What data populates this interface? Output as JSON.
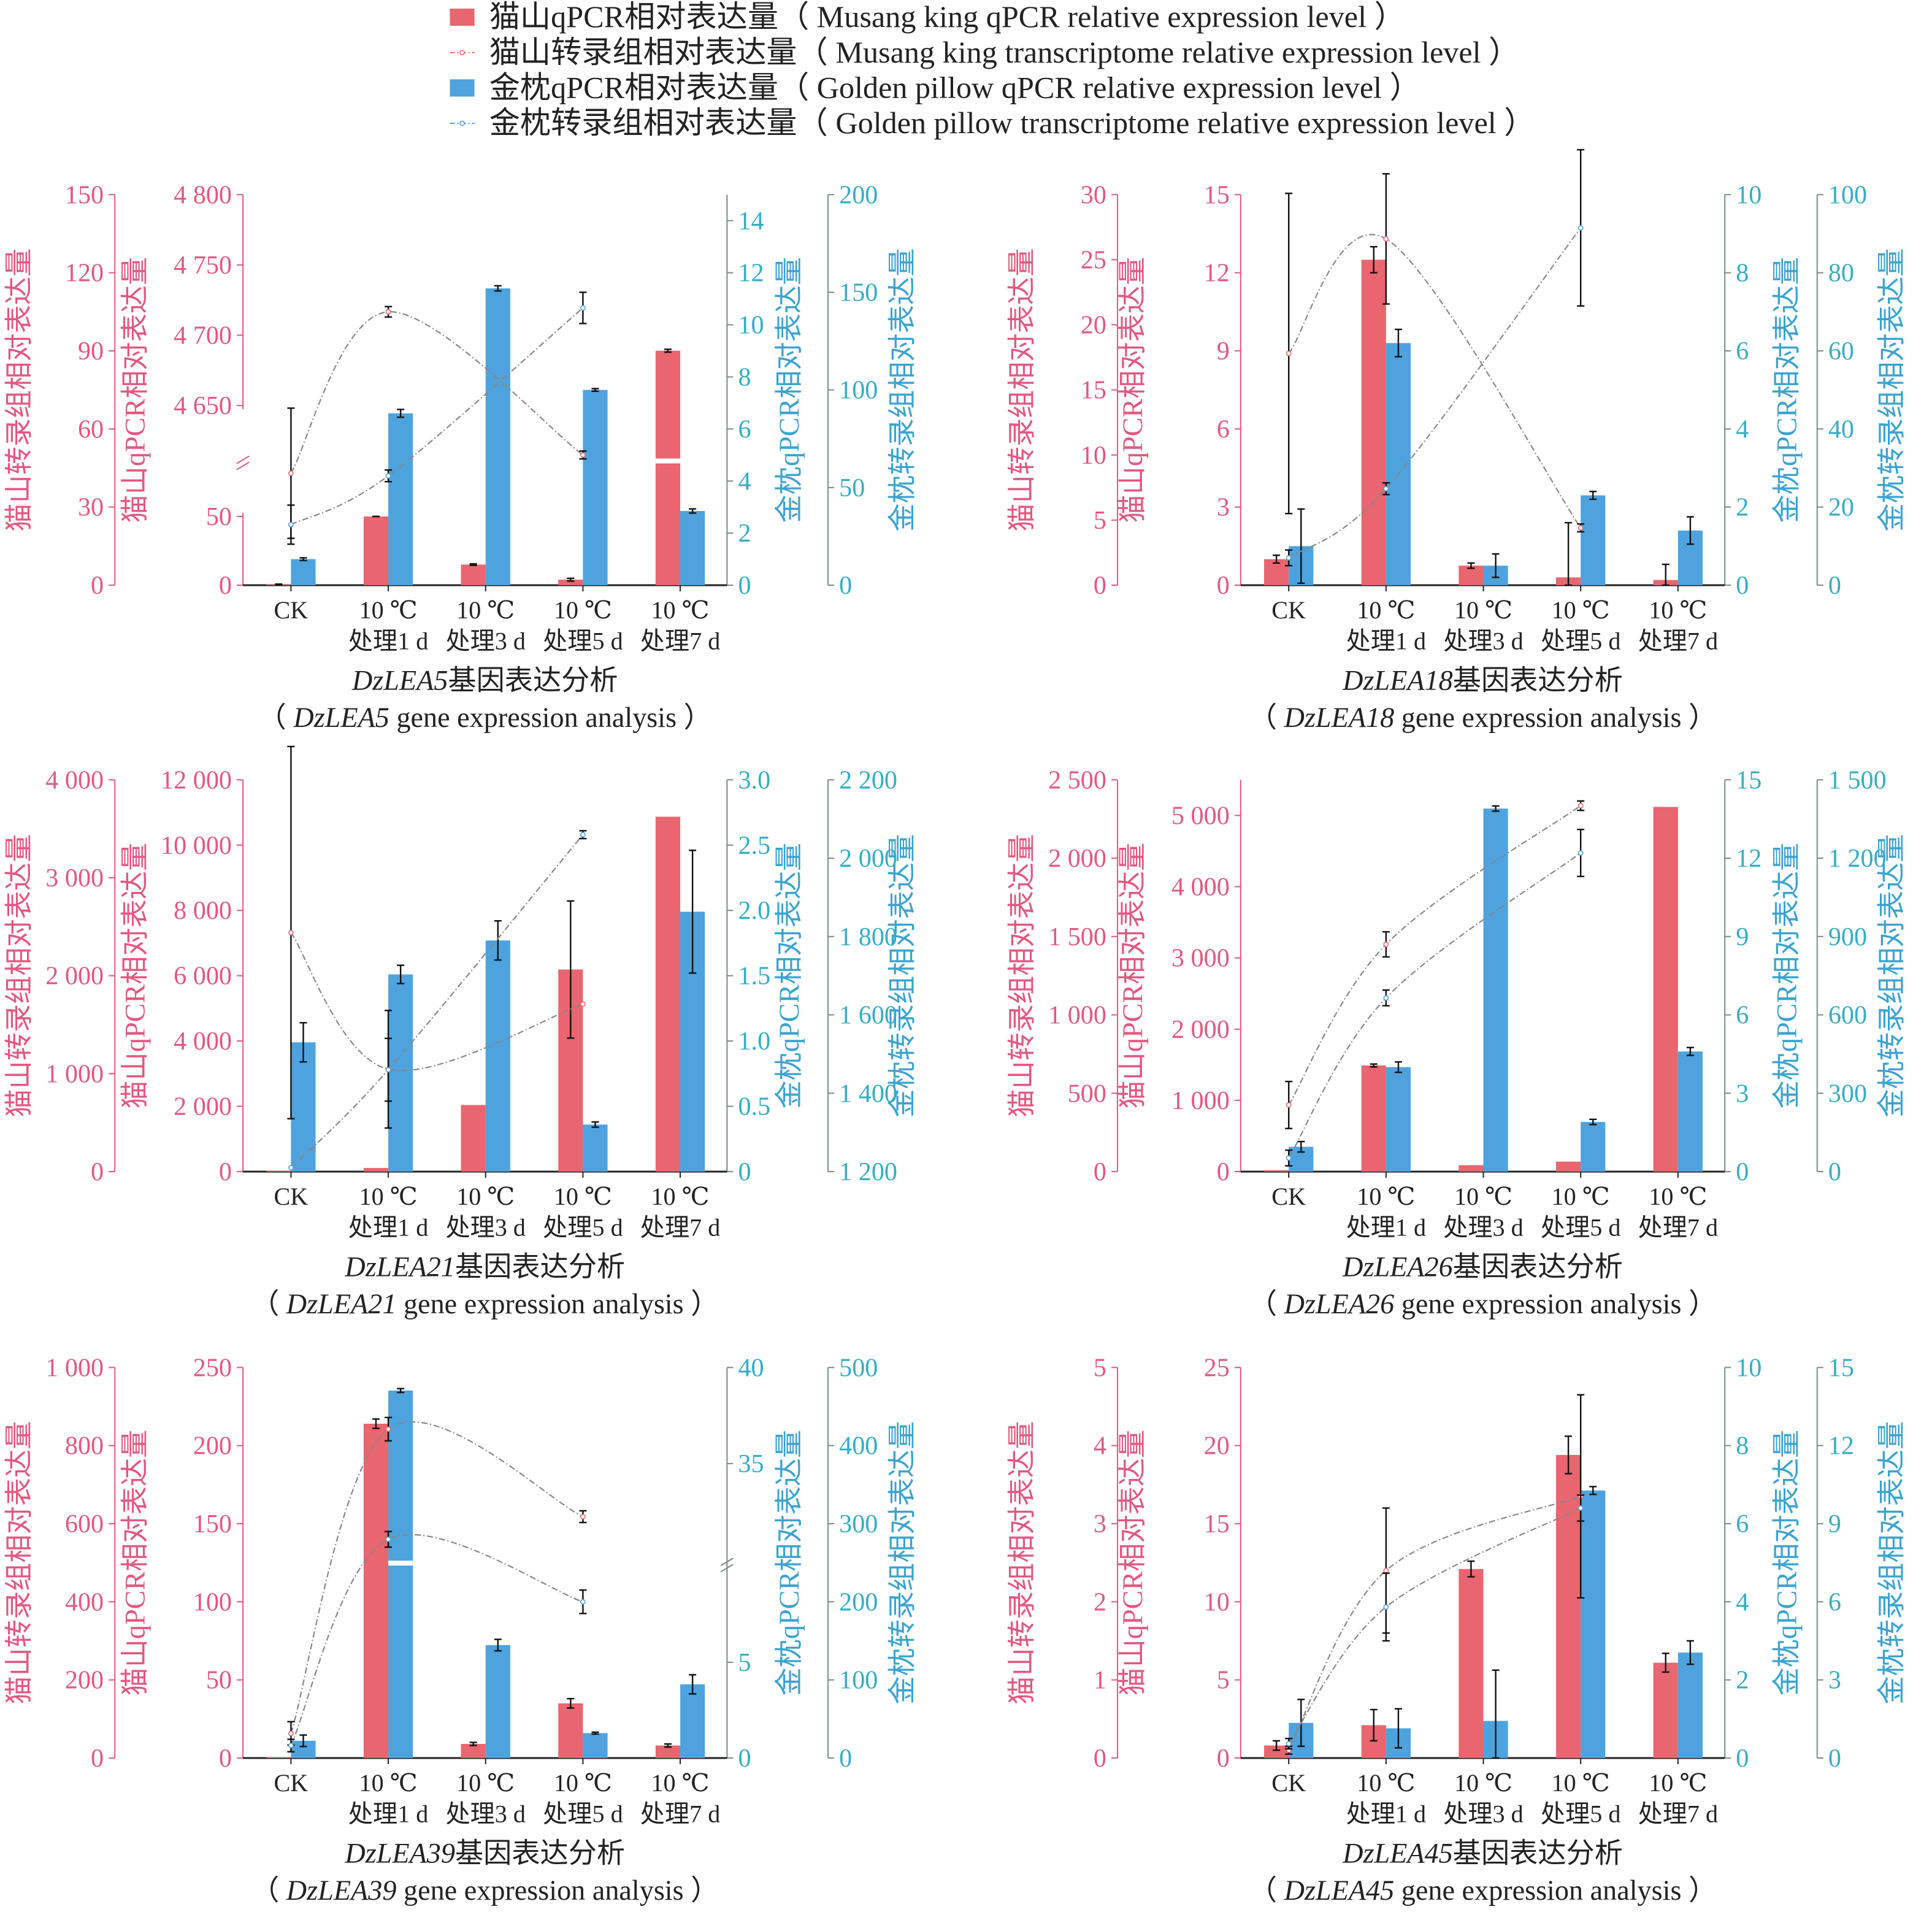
{
  "legend": [
    {
      "label": "猫山qPCR相对表达量（ Musang king qPCR relative expression level ）",
      "kind": "bar",
      "color": "#e9656f"
    },
    {
      "label": "猫山转录组相对表达量（ Musang king transcriptome relative expression level ）",
      "kind": "line",
      "color": "#e9656f"
    },
    {
      "label": "金枕qPCR相对表达量（ Golden pillow qPCR relative expression level ）",
      "kind": "bar",
      "color": "#4ea3de"
    },
    {
      "label": "金枕转录组相对表达量（ Golden pillow transcriptome relative expression level ）",
      "kind": "line",
      "color": "#4ea3de"
    }
  ],
  "colors": {
    "mk_bar": "#e9656f",
    "gp_bar": "#4ea3de",
    "left_axis": "#e2587f",
    "right_axis": "#33aec4",
    "line": "#888888"
  },
  "chart_data": [
    {
      "type": "bar+line",
      "gene": "DzLEA5",
      "title_suffix": "基因表达分析",
      "subtitle_suffix": " gene expression analysis",
      "categories": [
        [
          "CK",
          ""
        ],
        [
          "10 ℃",
          "处理1 d"
        ],
        [
          "10 ℃",
          "处理3 d"
        ],
        [
          "10 ℃",
          "处理5 d"
        ],
        [
          "10 ℃",
          "处理7 d"
        ]
      ],
      "axes": {
        "mk_trans": {
          "label": "猫山转录组相对表达量",
          "range": [
            0,
            150
          ],
          "ticks": [
            "0",
            "30",
            "60",
            "90",
            "120",
            "150"
          ]
        },
        "mk_qpcr": {
          "label": "猫山qPCR相对表达量",
          "range": [
            0,
            4800
          ],
          "break": [
            50,
            4650
          ],
          "ticks": [
            "0",
            "50",
            "4 650",
            "4 700",
            "4 750",
            "4 800"
          ]
        },
        "gp_qpcr": {
          "label": "金枕qPCR相对表达量",
          "range": [
            0,
            15
          ],
          "ticks": [
            "0",
            "2",
            "4",
            "6",
            "8",
            "10",
            "12",
            "14"
          ]
        },
        "gp_trans": {
          "label": "金枕转录组相对表达量",
          "range": [
            0,
            200
          ],
          "ticks": [
            "0",
            "50",
            "100",
            "150",
            "200"
          ]
        }
      },
      "mk_qpcr": {
        "values": [
          0.5,
          60,
          15,
          4,
          4689
        ],
        "err": [
          0.3,
          0.5,
          0.5,
          1,
          1
        ]
      },
      "gp_qpcr": {
        "values": [
          1.0,
          6.6,
          11.4,
          7.5,
          2.85
        ],
        "err": [
          0.05,
          0.15,
          0.1,
          0.05,
          0.08
        ]
      },
      "mk_trans": {
        "x_index": [
          0,
          1,
          3
        ],
        "values": [
          43,
          105,
          50
        ],
        "err": [
          25,
          2,
          1.5
        ]
      },
      "gp_trans": {
        "x_index": [
          0,
          1,
          3
        ],
        "values": [
          31,
          56,
          142
        ],
        "err": [
          10,
          3,
          8
        ]
      }
    },
    {
      "type": "bar+line",
      "gene": "DzLEA18",
      "title_suffix": "基因表达分析",
      "subtitle_suffix": " gene expression analysis",
      "categories": [
        [
          "CK",
          ""
        ],
        [
          "10 ℃",
          "处理1 d"
        ],
        [
          "10 ℃",
          "处理3 d"
        ],
        [
          "10 ℃",
          "处理5 d"
        ],
        [
          "10 ℃",
          "处理7 d"
        ]
      ],
      "axes": {
        "mk_trans": {
          "label": "猫山转录组相对表达量",
          "range": [
            0,
            30
          ],
          "ticks": [
            "0",
            "5",
            "10",
            "15",
            "20",
            "25",
            "30"
          ]
        },
        "mk_qpcr": {
          "label": "猫山qPCR相对表达量",
          "range": [
            0,
            15
          ],
          "ticks": [
            "0",
            "3",
            "6",
            "9",
            "12",
            "15"
          ]
        },
        "gp_qpcr": {
          "label": "金枕qPCR相对表达量",
          "range": [
            0,
            10
          ],
          "ticks": [
            "0",
            "2",
            "4",
            "6",
            "8",
            "10"
          ]
        },
        "gp_trans": {
          "label": "金枕转录组相对表达量",
          "range": [
            0,
            100
          ],
          "ticks": [
            "0",
            "20",
            "40",
            "60",
            "80",
            "100"
          ]
        }
      },
      "mk_qpcr": {
        "values": [
          1.0,
          12.5,
          0.75,
          0.3,
          0.2
        ],
        "err": [
          0.15,
          0.5,
          0.1,
          2.1,
          0.6
        ]
      },
      "gp_qpcr": {
        "values": [
          1.0,
          6.2,
          0.5,
          2.3,
          1.4
        ],
        "err": [
          0.95,
          0.35,
          0.3,
          0.1,
          0.35
        ]
      },
      "mk_trans": {
        "x_index": [
          0,
          1,
          3
        ],
        "values": [
          17.8,
          26.6,
          4.4
        ],
        "err": [
          12.3,
          5,
          0.3
        ]
      },
      "gp_trans": {
        "x_index": [
          0,
          1,
          3
        ],
        "values": [
          7,
          24.7,
          91.5
        ],
        "err": [
          2,
          1.5,
          20
        ]
      }
    },
    {
      "type": "bar+line",
      "gene": "DzLEA21",
      "title_suffix": "基因表达分析",
      "subtitle_suffix": " gene expression analysis",
      "categories": [
        [
          "CK",
          ""
        ],
        [
          "10 ℃",
          "处理1 d"
        ],
        [
          "10 ℃",
          "处理3 d"
        ],
        [
          "10 ℃",
          "处理5 d"
        ],
        [
          "10 ℃",
          "处理7 d"
        ]
      ],
      "axes": {
        "mk_trans": {
          "label": "猫山转录组相对表达量",
          "range": [
            0,
            4000
          ],
          "ticks": [
            "0",
            "1 000",
            "2 000",
            "3 000",
            "4 000"
          ]
        },
        "mk_qpcr": {
          "label": "猫山qPCR相对表达量",
          "range": [
            0,
            12000
          ],
          "ticks": [
            "0",
            "2 000",
            "4 000",
            "6 000",
            "8 000",
            "10 000",
            "12 000"
          ]
        },
        "gp_qpcr": {
          "label": "金枕qPCR相对表达量",
          "range": [
            0,
            3
          ],
          "ticks": [
            "0",
            "0.5",
            "1.0",
            "1.5",
            "2.0",
            "2.5",
            "3.0"
          ]
        },
        "gp_trans": {
          "label": "金枕转录组相对表达量",
          "range": [
            1200,
            2200
          ],
          "ticks": [
            "1 200",
            "1 400",
            "1 600",
            "1 800",
            "2 000",
            "2 200"
          ]
        }
      },
      "mk_qpcr": {
        "values": [
          30,
          110,
          2040,
          6190,
          10870
        ],
        "err": [
          0,
          0,
          0,
          2100,
          0
        ]
      },
      "gp_qpcr": {
        "values": [
          0.99,
          1.51,
          1.77,
          0.36,
          1.99
        ],
        "err": [
          0.15,
          0.07,
          0.15,
          0.02,
          0.47
        ]
      },
      "mk_trans": {
        "x_index": [
          0,
          1,
          3
        ],
        "values": [
          2440,
          1045,
          1710
        ],
        "err": [
          1900,
          600,
          0
        ]
      },
      "gp_trans": {
        "x_index": [
          0,
          1,
          3
        ],
        "values": [
          1210,
          1460,
          2060
        ],
        "err": [
          0,
          80,
          10
        ]
      }
    },
    {
      "type": "bar+line",
      "gene": "DzLEA26",
      "title_suffix": "基因表达分析",
      "subtitle_suffix": " gene expression analysis",
      "categories": [
        [
          "CK",
          ""
        ],
        [
          "10 ℃",
          "处理1 d"
        ],
        [
          "10 ℃",
          "处理3 d"
        ],
        [
          "10 ℃",
          "处理5 d"
        ],
        [
          "10 ℃",
          "处理7 d"
        ]
      ],
      "axes": {
        "mk_trans": {
          "label": "猫山转录组相对表达量",
          "range": [
            0,
            2500
          ],
          "ticks": [
            "0",
            "500",
            "1 000",
            "1 500",
            "2 000",
            "2 500"
          ]
        },
        "mk_qpcr": {
          "label": "猫山qPCR相对表达量",
          "range": [
            0,
            5500
          ],
          "ticks": [
            "0",
            "1 000",
            "2 000",
            "3 000",
            "4 000",
            "5 000"
          ]
        },
        "gp_qpcr": {
          "label": "金枕qPCR相对表达量",
          "range": [
            0,
            15
          ],
          "ticks": [
            "0",
            "3",
            "6",
            "9",
            "12",
            "15"
          ]
        },
        "gp_trans": {
          "label": "金枕转录组相对表达量",
          "range": [
            0,
            1500
          ],
          "ticks": [
            "0",
            "300",
            "600",
            "900",
            "1 200",
            "1 500"
          ]
        }
      },
      "mk_qpcr": {
        "values": [
          20,
          1490,
          90,
          140,
          5120
        ],
        "err": [
          0,
          20,
          0,
          0,
          0
        ]
      },
      "gp_qpcr": {
        "values": [
          0.95,
          4.0,
          13.9,
          1.9,
          4.6
        ],
        "err": [
          0.2,
          0.2,
          0.1,
          0.1,
          0.15
        ]
      },
      "mk_trans": {
        "x_index": [
          0,
          1,
          3
        ],
        "values": [
          425,
          1450,
          2335
        ],
        "err": [
          150,
          80,
          30
        ]
      },
      "gp_trans": {
        "x_index": [
          0,
          1,
          3
        ],
        "values": [
          52,
          665,
          1220
        ],
        "err": [
          30,
          30,
          90
        ]
      }
    },
    {
      "type": "bar+line",
      "gene": "DzLEA39",
      "title_suffix": "基因表达分析",
      "subtitle_suffix": " gene expression analysis",
      "categories": [
        [
          "CK",
          ""
        ],
        [
          "10 ℃",
          "处理1 d"
        ],
        [
          "10 ℃",
          "处理3 d"
        ],
        [
          "10 ℃",
          "处理5 d"
        ],
        [
          "10 ℃",
          "处理7 d"
        ]
      ],
      "axes": {
        "mk_trans": {
          "label": "猫山转录组相对表达量",
          "range": [
            0,
            1000
          ],
          "ticks": [
            "0",
            "200",
            "400",
            "600",
            "800",
            "1 000"
          ]
        },
        "mk_qpcr": {
          "label": "猫山qPCR相对表达量",
          "range": [
            0,
            250
          ],
          "ticks": [
            "0",
            "50",
            "100",
            "150",
            "200",
            "250"
          ]
        },
        "gp_qpcr": {
          "label": "金枕qPCR相对表达量",
          "range": [
            0,
            40
          ],
          "break": [
            10,
            30
          ],
          "ticks": [
            "0",
            "5",
            "35",
            "40"
          ]
        },
        "gp_trans": {
          "label": "金枕转录组相对表达量",
          "range": [
            0,
            500
          ],
          "ticks": [
            "0",
            "100",
            "200",
            "300",
            "400",
            "500"
          ]
        }
      },
      "mk_qpcr": {
        "values": [
          0.5,
          214,
          9,
          35,
          8
        ],
        "err": [
          0,
          3,
          1,
          3,
          1
        ]
      },
      "gp_qpcr": {
        "values": [
          0.9,
          38.8,
          5.9,
          1.3,
          3.85
        ],
        "err": [
          0.3,
          0.1,
          0.3,
          0.05,
          0.5
        ]
      },
      "mk_trans": {
        "x_index": [
          0,
          1,
          3
        ],
        "values": [
          63,
          842,
          618
        ],
        "err": [
          30,
          30,
          15
        ]
      },
      "gp_trans": {
        "x_index": [
          0,
          1,
          3
        ],
        "values": [
          16,
          280,
          200
        ],
        "err": [
          8,
          10,
          15
        ]
      }
    },
    {
      "type": "bar+line",
      "gene": "DzLEA45",
      "title_suffix": "基因表达分析",
      "subtitle_suffix": " gene expression analysis",
      "categories": [
        [
          "CK",
          ""
        ],
        [
          "10 ℃",
          "处理1 d"
        ],
        [
          "10 ℃",
          "处理3 d"
        ],
        [
          "10 ℃",
          "处理5 d"
        ],
        [
          "10 ℃",
          "处理7 d"
        ]
      ],
      "axes": {
        "mk_trans": {
          "label": "猫山转录组相对表达量",
          "range": [
            0,
            5
          ],
          "ticks": [
            "0",
            "1",
            "2",
            "3",
            "4",
            "5"
          ]
        },
        "mk_qpcr": {
          "label": "猫山qPCR相对表达量",
          "range": [
            0,
            25
          ],
          "ticks": [
            "0",
            "5",
            "10",
            "15",
            "20",
            "25"
          ]
        },
        "gp_qpcr": {
          "label": "金枕qPCR相对表达量",
          "range": [
            0,
            10
          ],
          "ticks": [
            "0",
            "2",
            "4",
            "6",
            "8",
            "10"
          ]
        },
        "gp_trans": {
          "label": "金枕转录组相对表达量",
          "range": [
            0,
            15
          ],
          "ticks": [
            "0",
            "3",
            "6",
            "9",
            "12",
            "15"
          ]
        }
      },
      "mk_qpcr": {
        "values": [
          0.8,
          2.1,
          12.1,
          19.4,
          6.1
        ],
        "err": [
          0.3,
          1,
          0.5,
          1.2,
          0.6
        ]
      },
      "gp_qpcr": {
        "values": [
          0.9,
          0.76,
          0.95,
          6.85,
          2.7
        ],
        "err": [
          0.6,
          0.5,
          1.3,
          0.1,
          0.3
        ]
      },
      "mk_trans": {
        "x_index": [
          0,
          1,
          3
        ],
        "values": [
          0.1,
          2.4,
          3.35
        ],
        "err": [
          0.05,
          0.8,
          1.3
        ]
      },
      "gp_trans": {
        "x_index": [
          0,
          1,
          3
        ],
        "values": [
          0.55,
          5.8,
          9.6
        ],
        "err": [
          0.2,
          1.3,
          0.5
        ]
      }
    }
  ]
}
